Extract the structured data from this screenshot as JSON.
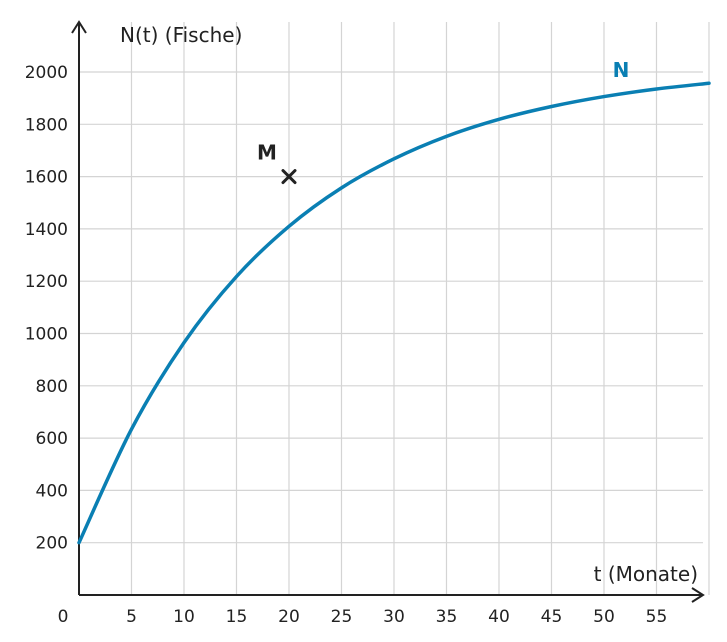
{
  "chart_data": {
    "type": "line",
    "xlabel": "t (Monate)",
    "ylabel": "N(t) (Fische)",
    "xlim": [
      0,
      60
    ],
    "ylim": [
      0,
      2150
    ],
    "x_ticks": [
      5,
      10,
      15,
      20,
      25,
      30,
      35,
      40,
      45,
      50,
      55
    ],
    "y_ticks": [
      200,
      400,
      600,
      800,
      1000,
      1200,
      1400,
      1600,
      1800,
      2000
    ],
    "origin_label": "0",
    "grid": true,
    "series": [
      {
        "name": "N",
        "color": "#0a7fb3",
        "x": [
          0,
          5,
          10,
          15,
          20,
          25,
          30,
          35,
          40,
          45,
          50,
          55,
          60
        ],
        "y": [
          200,
          634,
          965,
          1218,
          1410,
          1557,
          1668,
          1754,
          1819,
          1868,
          1906,
          1935,
          1957
        ]
      }
    ],
    "points": [
      {
        "name": "M",
        "x": 20,
        "y": 1600
      }
    ]
  }
}
